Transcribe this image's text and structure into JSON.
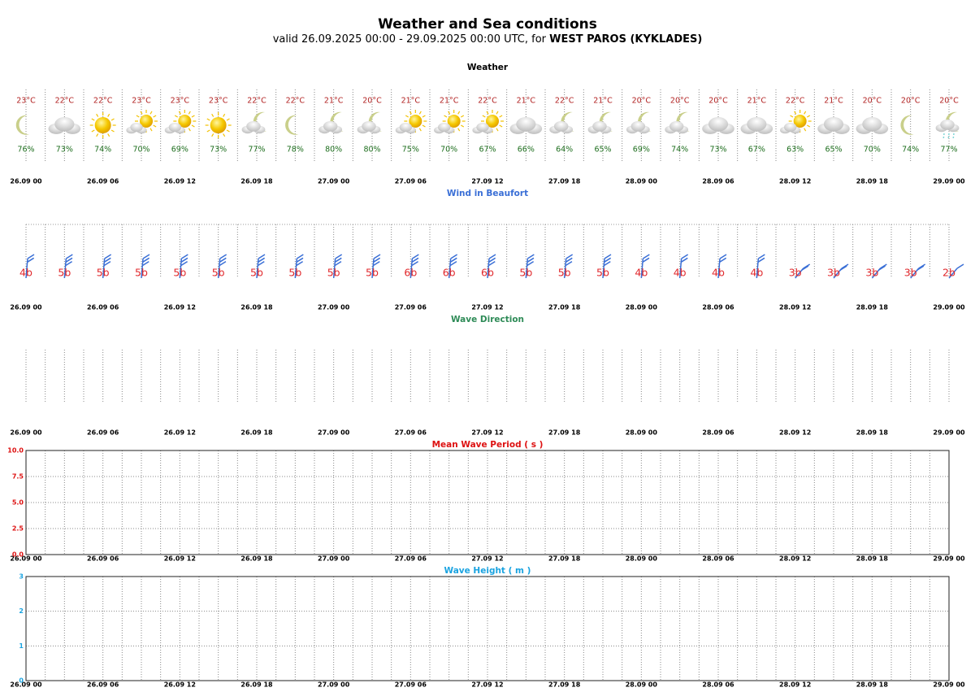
{
  "title": "Weather and Sea conditions",
  "subtitle": "valid 26.09.2025 00:00 - 29.09.2025 00:00 UTC, for ",
  "location": "WEST PAROS (KYKLADES)",
  "chart_data": [
    {
      "type": "weather",
      "title": "Weather",
      "xticks": [
        "26.09 00",
        "26.09 06",
        "26.09 12",
        "26.09 18",
        "27.09 00",
        "27.09 06",
        "27.09 12",
        "27.09 18",
        "28.09 00",
        "28.09 06",
        "28.09 12",
        "28.09 18",
        "29.09 00"
      ],
      "temperature": {
        "color": "#b22222",
        "values": [
          23,
          22,
          22,
          23,
          23,
          23,
          22,
          22,
          21,
          20,
          21,
          21,
          22,
          21,
          22,
          21,
          20,
          20,
          20,
          21,
          22,
          21,
          20,
          20,
          20
        ],
        "value_labels": [
          "23°C",
          "22°C",
          "22°C",
          "23°C",
          "23°C",
          "23°C",
          "22°C",
          "22°C",
          "21°C",
          "20°C",
          "21°C",
          "21°C",
          "22°C",
          "21°C",
          "22°C",
          "21°C",
          "20°C",
          "20°C",
          "20°C",
          "21°C",
          "22°C",
          "21°C",
          "20°C",
          "20°C",
          "20°C"
        ]
      },
      "humidity": {
        "color": "#1e6e1e",
        "values": [
          76,
          73,
          74,
          70,
          69,
          73,
          77,
          78,
          80,
          80,
          75,
          70,
          67,
          66,
          64,
          65,
          69,
          74,
          73,
          67,
          63,
          65,
          70,
          74,
          77
        ],
        "value_labels": [
          "76%",
          "73%",
          "74%",
          "70%",
          "69%",
          "73%",
          "77%",
          "78%",
          "80%",
          "80%",
          "75%",
          "70%",
          "67%",
          "66%",
          "64%",
          "65%",
          "69%",
          "74%",
          "73%",
          "67%",
          "63%",
          "65%",
          "70%",
          "74%",
          "77%"
        ]
      },
      "symbols": [
        "moon",
        "cloud",
        "sun",
        "sun-cloud",
        "sun-cloud",
        "sun",
        "moon-cloud",
        "moon",
        "moon-cloud",
        "moon-cloud",
        "sun-cloud",
        "sun-cloud",
        "sun-cloud",
        "cloud",
        "moon-cloud",
        "moon-cloud",
        "moon-cloud",
        "moon-cloud",
        "cloud",
        "cloud",
        "sun-cloud",
        "cloud",
        "cloud",
        "moon",
        "moon-rain"
      ]
    },
    {
      "type": "wind",
      "title": "Wind in Beaufort",
      "title_color": "#3a6fd6",
      "color": "#3a6fd6",
      "label_color": "#e0262a",
      "xticks": [
        "26.09 00",
        "26.09 06",
        "26.09 12",
        "26.09 18",
        "27.09 00",
        "27.09 06",
        "27.09 12",
        "27.09 18",
        "28.09 00",
        "28.09 06",
        "28.09 12",
        "28.09 18",
        "29.09 00"
      ],
      "values": [
        4,
        5,
        5,
        5,
        5,
        5,
        5,
        5,
        5,
        5,
        6,
        6,
        6,
        5,
        5,
        5,
        4,
        4,
        4,
        4,
        3,
        3,
        3,
        3,
        2
      ],
      "value_labels": [
        "4b",
        "5b",
        "5b",
        "5b",
        "5b",
        "5b",
        "5b",
        "5b",
        "5b",
        "5b",
        "6b",
        "6b",
        "6b",
        "5b",
        "5b",
        "5b",
        "4b",
        "4b",
        "4b",
        "4b",
        "3b",
        "3b",
        "3b",
        "3b",
        "2b"
      ]
    },
    {
      "type": "direction",
      "title": "Wave Direction",
      "title_color": "#2e8b57",
      "xticks": [
        "26.09 00",
        "26.09 06",
        "26.09 12",
        "26.09 18",
        "27.09 00",
        "27.09 06",
        "27.09 12",
        "27.09 18",
        "28.09 00",
        "28.09 06",
        "28.09 12",
        "28.09 18",
        "29.09 00"
      ]
    },
    {
      "type": "line",
      "title": "Mean Wave Period ( s )",
      "title_color": "#dd1111",
      "grid": true,
      "xticks": [
        "26.09 00",
        "26.09 06",
        "26.09 12",
        "26.09 18",
        "27.09 00",
        "27.09 06",
        "27.09 12",
        "27.09 18",
        "28.09 00",
        "28.09 06",
        "28.09 12",
        "28.09 18",
        "29.09 00"
      ],
      "ylim": [
        0,
        10
      ],
      "yticks": [
        {
          "value": 0,
          "label": "0.0"
        },
        2.5,
        {
          "value": 5,
          "label": "5.0"
        },
        7.5,
        {
          "value": 10,
          "label": "10.0"
        }
      ]
    },
    {
      "type": "line",
      "title": "Wave Height ( m )",
      "title_color": "#1aa3e0",
      "grid": true,
      "xticks": [
        "26.09 00",
        "26.09 06",
        "26.09 12",
        "26.09 18",
        "27.09 00",
        "27.09 06",
        "27.09 12",
        "27.09 18",
        "28.09 00",
        "28.09 06",
        "28.09 12",
        "28.09 18",
        "29.09 00"
      ],
      "ylim": [
        0,
        3
      ],
      "yticks": [
        0,
        1,
        2,
        3
      ]
    }
  ]
}
